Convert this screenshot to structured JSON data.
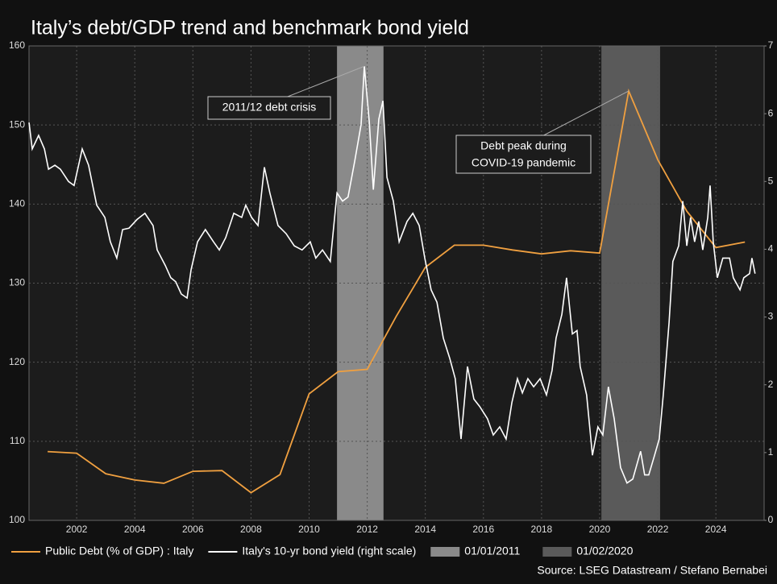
{
  "chart_data": {
    "type": "line",
    "title": "Italy’s debt/GDP trend and benchmark bond yield",
    "source": "Source: LSEG Datastream / Stefano Bernabei",
    "xlim": [
      2000.36,
      2025.66
    ],
    "xticks": [
      2002,
      2004,
      2006,
      2008,
      2010,
      2012,
      2014,
      2016,
      2018,
      2020,
      2022,
      2024
    ],
    "ylim": [
      100,
      160
    ],
    "yticks": [
      100,
      110,
      120,
      130,
      140,
      150,
      160
    ],
    "y2lim": [
      0,
      7
    ],
    "y2ticks": [
      0,
      1,
      2,
      3,
      4,
      5,
      6,
      7
    ],
    "grid": true,
    "shades": [
      {
        "name": "01/01/2011",
        "color": "#8a8a8a",
        "x": [
          2010.96,
          2012.56
        ]
      },
      {
        "name": "01/02/2020",
        "color": "#5a5a5a",
        "x": [
          2020.06,
          2022.08
        ]
      }
    ],
    "series": [
      {
        "name": "Public Debt (% of GDP) : Italy",
        "color": "#f0a040",
        "x": [
          2001,
          2002,
          2003,
          2004,
          2005,
          2006,
          2007,
          2008,
          2009,
          2010,
          2011,
          2012,
          2013,
          2014,
          2015,
          2016,
          2017,
          2018,
          2019,
          2020,
          2021,
          2022,
          2023,
          2024,
          2025
        ],
        "values": [
          108.7,
          108.5,
          105.9,
          105.1,
          104.7,
          106.2,
          106.3,
          103.5,
          105.8,
          116.0,
          118.8,
          119.1,
          125.8,
          132.0,
          134.8,
          134.8,
          134.2,
          133.7,
          134.1,
          133.8,
          154.3,
          145.6,
          139.1,
          134.5,
          135.2
        ]
      },
      {
        "name": "Italy's 10-yr bond yield (right scale)",
        "color": "#ffffff",
        "axis": "y2",
        "x": [
          2000.36,
          2000.47,
          2000.69,
          2000.89,
          2001.03,
          2001.25,
          2001.44,
          2001.72,
          2001.91,
          2002.19,
          2002.41,
          2002.69,
          2002.97,
          2003.16,
          2003.38,
          2003.58,
          2003.8,
          2004.08,
          2004.35,
          2004.63,
          2004.77,
          2005.05,
          2005.24,
          2005.41,
          2005.6,
          2005.8,
          2005.94,
          2006.16,
          2006.43,
          2006.71,
          2006.91,
          2007.13,
          2007.41,
          2007.68,
          2007.82,
          2008.02,
          2008.24,
          2008.46,
          2008.65,
          2008.93,
          2009.21,
          2009.49,
          2009.76,
          2010.04,
          2010.23,
          2010.46,
          2010.73,
          2010.96,
          2011.15,
          2011.34,
          2011.57,
          2011.79,
          2011.9,
          2012.07,
          2012.21,
          2012.4,
          2012.54,
          2012.68,
          2012.9,
          2013.1,
          2013.37,
          2013.57,
          2013.79,
          2013.98,
          2014.2,
          2014.4,
          2014.62,
          2014.84,
          2015.03,
          2015.23,
          2015.45,
          2015.67,
          2015.87,
          2016.14,
          2016.34,
          2016.56,
          2016.78,
          2016.98,
          2017.17,
          2017.34,
          2017.53,
          2017.73,
          2017.95,
          2018.17,
          2018.36,
          2018.5,
          2018.7,
          2018.86,
          2019.06,
          2019.22,
          2019.33,
          2019.55,
          2019.75,
          2019.94,
          2020.11,
          2020.3,
          2020.5,
          2020.72,
          2020.94,
          2021.14,
          2021.41,
          2021.55,
          2021.69,
          2021.89,
          2022.05,
          2022.19,
          2022.39,
          2022.52,
          2022.72,
          2022.86,
          2023.0,
          2023.13,
          2023.27,
          2023.41,
          2023.55,
          2023.72,
          2023.8,
          2023.91,
          2024.05,
          2024.24,
          2024.47,
          2024.6,
          2024.83,
          2024.96,
          2025.16,
          2025.24,
          2025.35
        ],
        "values": [
          5.87,
          5.48,
          5.68,
          5.48,
          5.18,
          5.24,
          5.18,
          5.0,
          4.94,
          5.48,
          5.24,
          4.65,
          4.47,
          4.11,
          3.87,
          4.29,
          4.31,
          4.44,
          4.53,
          4.35,
          3.99,
          3.76,
          3.58,
          3.52,
          3.34,
          3.28,
          3.7,
          4.11,
          4.29,
          4.11,
          3.99,
          4.17,
          4.53,
          4.47,
          4.65,
          4.47,
          4.35,
          5.21,
          4.83,
          4.35,
          4.23,
          4.05,
          3.99,
          4.11,
          3.87,
          3.99,
          3.82,
          4.83,
          4.71,
          4.77,
          5.3,
          5.84,
          6.7,
          5.89,
          4.88,
          5.92,
          6.19,
          5.06,
          4.71,
          4.11,
          4.41,
          4.53,
          4.35,
          3.87,
          3.4,
          3.22,
          2.69,
          2.39,
          2.09,
          1.2,
          2.27,
          1.79,
          1.68,
          1.5,
          1.26,
          1.38,
          1.2,
          1.74,
          2.09,
          1.88,
          2.09,
          1.97,
          2.09,
          1.85,
          2.21,
          2.69,
          3.04,
          3.58,
          2.75,
          2.8,
          2.27,
          1.85,
          0.96,
          1.38,
          1.26,
          1.97,
          1.5,
          0.78,
          0.55,
          0.61,
          1.02,
          0.67,
          0.67,
          0.96,
          1.2,
          1.85,
          2.92,
          3.82,
          4.05,
          4.71,
          4.05,
          4.47,
          4.11,
          4.41,
          3.99,
          4.47,
          4.94,
          4.11,
          3.58,
          3.87,
          3.87,
          3.58,
          3.4,
          3.58,
          3.64,
          3.87,
          3.64
        ]
      }
    ],
    "annotations": [
      {
        "lines": [
          "2011/12 debt crisis"
        ],
        "x": 2011.9,
        "y": 6.7,
        "axis": "y2"
      },
      {
        "lines": [
          "Debt peak during",
          "COVID-19 pandemic"
        ],
        "x": 2021,
        "y": 154.3,
        "axis": "y"
      }
    ]
  }
}
